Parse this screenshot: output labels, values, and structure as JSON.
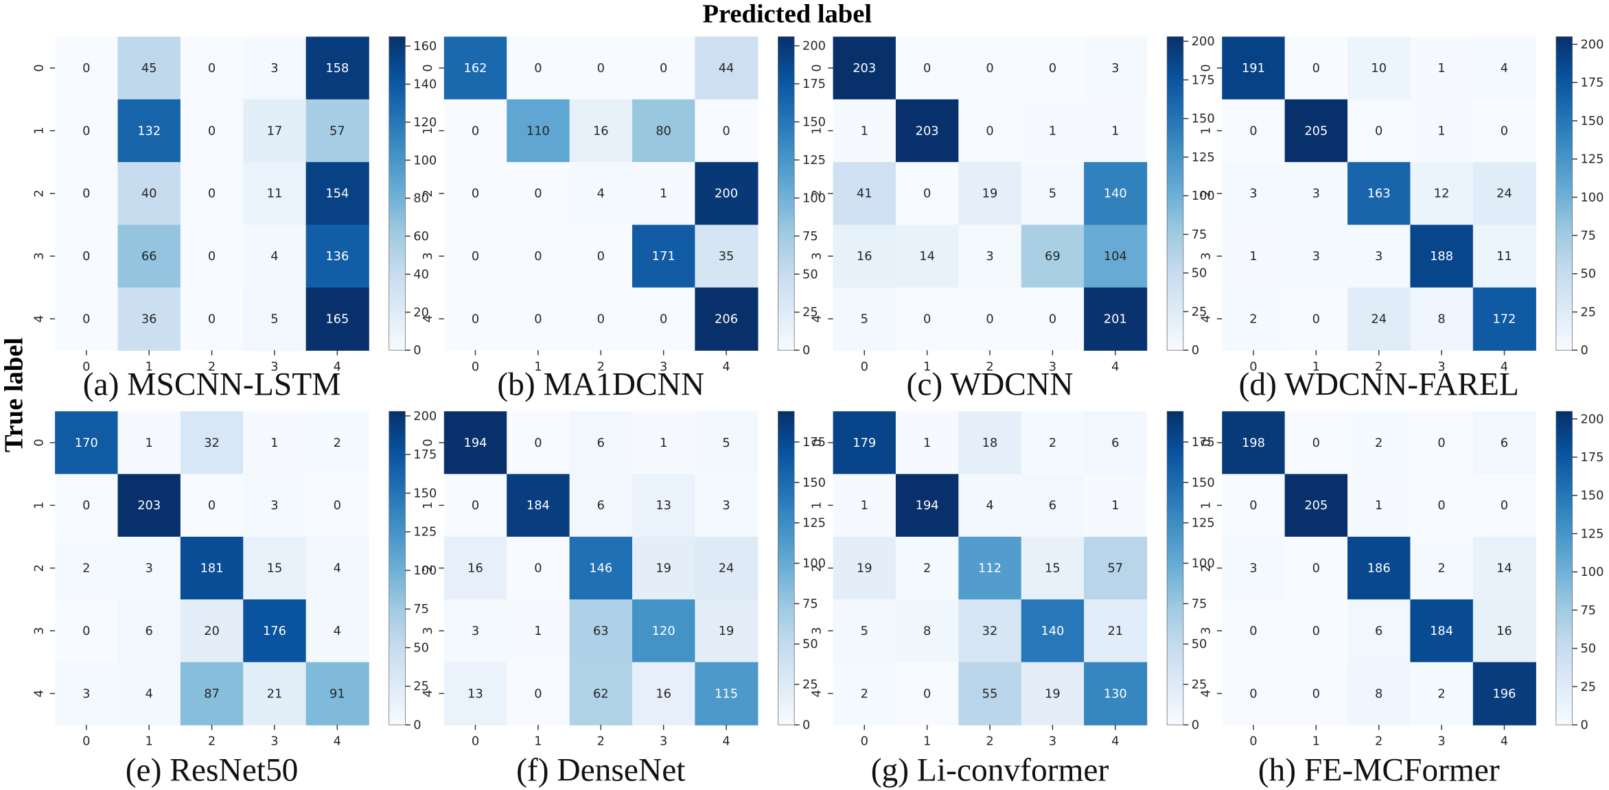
{
  "figure": {
    "x_title": "Predicted label",
    "y_title": "True label"
  },
  "chart_data": [
    {
      "type": "heatmap",
      "caption": "(a) MSCNN-LSTM",
      "x_ticks": [
        "0",
        "1",
        "2",
        "3",
        "4"
      ],
      "y_ticks": [
        "0",
        "1",
        "2",
        "3",
        "4"
      ],
      "matrix": [
        [
          0,
          45,
          0,
          3,
          158
        ],
        [
          0,
          132,
          0,
          17,
          57
        ],
        [
          0,
          40,
          0,
          11,
          154
        ],
        [
          0,
          66,
          0,
          4,
          136
        ],
        [
          0,
          36,
          0,
          5,
          165
        ]
      ],
      "colorbar": {
        "min": 0,
        "max": 165,
        "ticks": [
          0,
          20,
          40,
          60,
          80,
          100,
          120,
          140,
          160
        ]
      }
    },
    {
      "type": "heatmap",
      "caption": "(b) MA1DCNN",
      "x_ticks": [
        "0",
        "1",
        "2",
        "3",
        "4"
      ],
      "y_ticks": [
        "0",
        "1",
        "2",
        "3",
        "4"
      ],
      "matrix": [
        [
          162,
          0,
          0,
          0,
          44
        ],
        [
          0,
          110,
          16,
          80,
          0
        ],
        [
          0,
          0,
          4,
          1,
          200
        ],
        [
          0,
          0,
          0,
          171,
          35
        ],
        [
          0,
          0,
          0,
          0,
          206
        ]
      ],
      "colorbar": {
        "min": 0,
        "max": 206,
        "ticks": [
          0,
          25,
          50,
          75,
          100,
          125,
          150,
          175,
          200
        ]
      }
    },
    {
      "type": "heatmap",
      "caption": "(c) WDCNN",
      "x_ticks": [
        "0",
        "1",
        "2",
        "3",
        "4"
      ],
      "y_ticks": [
        "0",
        "1",
        "2",
        "3",
        "4"
      ],
      "matrix": [
        [
          203,
          0,
          0,
          0,
          3
        ],
        [
          1,
          203,
          0,
          1,
          1
        ],
        [
          41,
          0,
          19,
          5,
          140
        ],
        [
          16,
          14,
          3,
          69,
          104
        ],
        [
          5,
          0,
          0,
          0,
          201
        ]
      ],
      "colorbar": {
        "min": 0,
        "max": 203,
        "ticks": [
          0,
          25,
          50,
          75,
          100,
          125,
          150,
          175,
          200
        ]
      }
    },
    {
      "type": "heatmap",
      "caption": "(d) WDCNN-FAREL",
      "x_ticks": [
        "0",
        "1",
        "2",
        "3",
        "4"
      ],
      "y_ticks": [
        "0",
        "1",
        "2",
        "3",
        "4"
      ],
      "matrix": [
        [
          191,
          0,
          10,
          1,
          4
        ],
        [
          0,
          205,
          0,
          1,
          0
        ],
        [
          3,
          3,
          163,
          12,
          24
        ],
        [
          1,
          3,
          3,
          188,
          11
        ],
        [
          2,
          0,
          24,
          8,
          172
        ]
      ],
      "colorbar": {
        "min": 0,
        "max": 205,
        "ticks": [
          0,
          25,
          50,
          75,
          100,
          125,
          150,
          175,
          200
        ]
      }
    },
    {
      "type": "heatmap",
      "caption": "(e) ResNet50",
      "x_ticks": [
        "0",
        "1",
        "2",
        "3",
        "4"
      ],
      "y_ticks": [
        "0",
        "1",
        "2",
        "3",
        "4"
      ],
      "matrix": [
        [
          170,
          1,
          32,
          1,
          2
        ],
        [
          0,
          203,
          0,
          3,
          0
        ],
        [
          2,
          3,
          181,
          15,
          4
        ],
        [
          0,
          6,
          20,
          176,
          4
        ],
        [
          3,
          4,
          87,
          21,
          91
        ]
      ],
      "colorbar": {
        "min": 0,
        "max": 203,
        "ticks": [
          0,
          25,
          50,
          75,
          100,
          125,
          150,
          175,
          200
        ]
      }
    },
    {
      "type": "heatmap",
      "caption": "(f) DenseNet",
      "x_ticks": [
        "0",
        "1",
        "2",
        "3",
        "4"
      ],
      "y_ticks": [
        "0",
        "1",
        "2",
        "3",
        "4"
      ],
      "matrix": [
        [
          194,
          0,
          6,
          1,
          5
        ],
        [
          0,
          184,
          6,
          13,
          3
        ],
        [
          16,
          0,
          146,
          19,
          24
        ],
        [
          3,
          1,
          63,
          120,
          19
        ],
        [
          13,
          0,
          62,
          16,
          115
        ]
      ],
      "colorbar": {
        "min": 0,
        "max": 194,
        "ticks": [
          0,
          25,
          50,
          75,
          100,
          125,
          150,
          175
        ]
      }
    },
    {
      "type": "heatmap",
      "caption": "(g) Li-convformer",
      "x_ticks": [
        "0",
        "1",
        "2",
        "3",
        "4"
      ],
      "y_ticks": [
        "0",
        "1",
        "2",
        "3",
        "4"
      ],
      "matrix": [
        [
          179,
          1,
          18,
          2,
          6
        ],
        [
          1,
          194,
          4,
          6,
          1
        ],
        [
          19,
          2,
          112,
          15,
          57
        ],
        [
          5,
          8,
          32,
          140,
          21
        ],
        [
          2,
          0,
          55,
          19,
          130
        ]
      ],
      "colorbar": {
        "min": 0,
        "max": 194,
        "ticks": [
          0,
          25,
          50,
          75,
          100,
          125,
          150,
          175
        ]
      }
    },
    {
      "type": "heatmap",
      "caption": "(h) FE-MCFormer",
      "x_ticks": [
        "0",
        "1",
        "2",
        "3",
        "4"
      ],
      "y_ticks": [
        "0",
        "1",
        "2",
        "3",
        "4"
      ],
      "matrix": [
        [
          198,
          0,
          2,
          0,
          6
        ],
        [
          0,
          205,
          1,
          0,
          0
        ],
        [
          3,
          0,
          186,
          2,
          14
        ],
        [
          0,
          0,
          6,
          184,
          16
        ],
        [
          0,
          0,
          8,
          2,
          196
        ]
      ],
      "colorbar": {
        "min": 0,
        "max": 205,
        "ticks": [
          0,
          25,
          50,
          75,
          100,
          125,
          150,
          175,
          200
        ]
      }
    }
  ]
}
